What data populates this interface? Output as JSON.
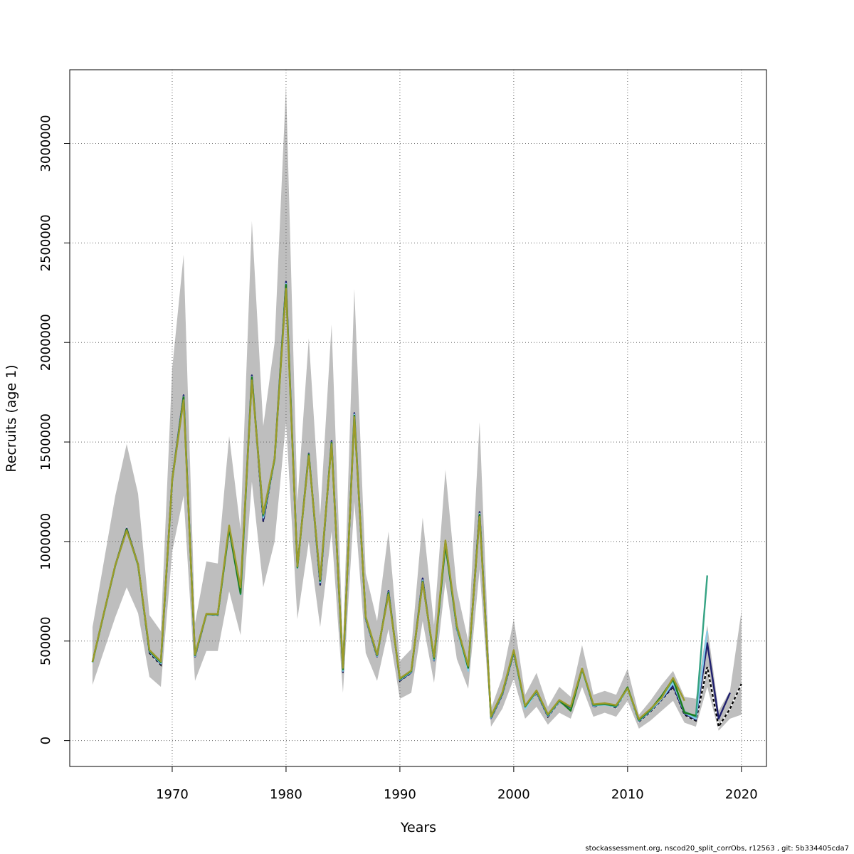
{
  "chart_data": {
    "type": "line",
    "xlabel": "Years",
    "ylabel": "Recruits (age 1)",
    "xlim": [
      1961,
      2022.2
    ],
    "ylim": [
      -130000,
      3370000
    ],
    "x_ticks": [
      1970,
      1980,
      1990,
      2000,
      2010,
      2020
    ],
    "y_ticks": [
      0,
      500000,
      1000000,
      1500000,
      2000000,
      2500000,
      3000000
    ],
    "y_tick_labels": [
      "0",
      "500000",
      "1000000",
      "1500000",
      "2000000",
      "2500000",
      "3000000"
    ],
    "grid": true,
    "band_color": "#bebebe",
    "band": {
      "x": [
        1963,
        1964,
        1965,
        1966,
        1967,
        1968,
        1969,
        1970,
        1971,
        1972,
        1973,
        1974,
        1975,
        1976,
        1977,
        1978,
        1979,
        1980,
        1981,
        1982,
        1983,
        1984,
        1985,
        1986,
        1987,
        1988,
        1989,
        1990,
        1991,
        1992,
        1993,
        1994,
        1995,
        1996,
        1997,
        1998,
        1999,
        2000,
        2001,
        2002,
        2003,
        2004,
        2005,
        2006,
        2007,
        2008,
        2009,
        2010,
        2011,
        2012,
        2013,
        2014,
        2015,
        2016,
        2017,
        2018,
        2019,
        2020
      ],
      "lower": [
        280000,
        450000,
        620000,
        770000,
        640000,
        320000,
        270000,
        950000,
        1230000,
        300000,
        450000,
        450000,
        750000,
        530000,
        1300000,
        770000,
        1000000,
        1600000,
        610000,
        1000000,
        570000,
        1050000,
        240000,
        1200000,
        440000,
        300000,
        560000,
        210000,
        240000,
        600000,
        290000,
        800000,
        410000,
        260000,
        860000,
        70000,
        160000,
        310000,
        110000,
        170000,
        80000,
        140000,
        110000,
        270000,
        120000,
        140000,
        120000,
        200000,
        60000,
        100000,
        150000,
        200000,
        90000,
        70000,
        270000,
        50000,
        110000,
        130000
      ],
      "upper": [
        570000,
        900000,
        1230000,
        1490000,
        1240000,
        630000,
        550000,
        1870000,
        2440000,
        590000,
        900000,
        890000,
        1530000,
        1060000,
        2610000,
        1580000,
        2000000,
        3290000,
        1200000,
        2020000,
        1130000,
        2090000,
        480000,
        2270000,
        840000,
        600000,
        1050000,
        400000,
        460000,
        1120000,
        580000,
        1360000,
        760000,
        500000,
        1600000,
        160000,
        320000,
        610000,
        230000,
        340000,
        170000,
        270000,
        220000,
        480000,
        230000,
        250000,
        230000,
        360000,
        130000,
        200000,
        280000,
        350000,
        220000,
        210000,
        580000,
        150000,
        250000,
        650000
      ]
    },
    "series": [
      {
        "name": "",
        "color": "#000000",
        "dashed": true,
        "x": [
          1963,
          1964,
          1965,
          1966,
          1967,
          1968,
          1969,
          1970,
          1971,
          1972,
          1973,
          1974,
          1975,
          1976,
          1977,
          1978,
          1979,
          1980,
          1981,
          1982,
          1983,
          1984,
          1985,
          1986,
          1987,
          1988,
          1989,
          1990,
          1991,
          1992,
          1993,
          1994,
          1995,
          1996,
          1997,
          1998,
          1999,
          2000,
          2001,
          2002,
          2003,
          2004,
          2005,
          2006,
          2007,
          2008,
          2009,
          2010,
          2011,
          2012,
          2013,
          2014,
          2015,
          2016,
          2017,
          2018,
          2019,
          2020
        ],
        "values": [
          395000,
          640000,
          880000,
          1065000,
          880000,
          440000,
          380000,
          1310000,
          1730000,
          420000,
          635000,
          630000,
          1070000,
          750000,
          1830000,
          1100000,
          1415000,
          2300000,
          870000,
          1440000,
          780000,
          1500000,
          340000,
          1640000,
          610000,
          420000,
          750000,
          300000,
          340000,
          810000,
          400000,
          1000000,
          560000,
          360000,
          1150000,
          110000,
          230000,
          440000,
          165000,
          240000,
          120000,
          195000,
          160000,
          360000,
          170000,
          185000,
          165000,
          260000,
          95000,
          145000,
          205000,
          270000,
          130000,
          100000,
          370000,
          70000,
          160000,
          285000
        ]
      },
      {
        "name": "",
        "color": "#1f1f6e",
        "dashed": false,
        "x": [
          1963,
          1964,
          1965,
          1966,
          1967,
          1968,
          1969,
          1970,
          1971,
          1972,
          1973,
          1974,
          1975,
          1976,
          1977,
          1978,
          1979,
          1980,
          1981,
          1982,
          1983,
          1984,
          1985,
          1986,
          1987,
          1988,
          1989,
          1990,
          1991,
          1992,
          1993,
          1994,
          1995,
          1996,
          1997,
          1998,
          1999,
          2000,
          2001,
          2002,
          2003,
          2004,
          2005,
          2006,
          2007,
          2008,
          2009,
          2010,
          2011,
          2012,
          2013,
          2014,
          2015,
          2016,
          2017,
          2018,
          2019
        ],
        "values": [
          395000,
          640000,
          880000,
          1065000,
          885000,
          445000,
          385000,
          1315000,
          1735000,
          422000,
          635000,
          632000,
          1072000,
          752000,
          1835000,
          1105000,
          1418000,
          2305000,
          872000,
          1442000,
          785000,
          1505000,
          345000,
          1645000,
          612000,
          422000,
          752000,
          302000,
          342000,
          815000,
          402000,
          1002000,
          562000,
          362000,
          1148000,
          112000,
          232000,
          442000,
          168000,
          242000,
          122000,
          198000,
          162000,
          362000,
          172000,
          188000,
          168000,
          262000,
          98000,
          148000,
          208000,
          275000,
          135000,
          105000,
          490000,
          110000,
          240000
        ]
      },
      {
        "name": "",
        "color": "#87ceeb",
        "dashed": false,
        "x": [
          1963,
          1964,
          1965,
          1966,
          1967,
          1968,
          1969,
          1970,
          1971,
          1972,
          1973,
          1974,
          1975,
          1976,
          1977,
          1978,
          1979,
          1980,
          1981,
          1982,
          1983,
          1984,
          1985,
          1986,
          1987,
          1988,
          1989,
          1990,
          1991,
          1992,
          1993,
          1994,
          1995,
          1996,
          1997,
          1998,
          1999,
          2000,
          2001,
          2002,
          2003,
          2004,
          2005,
          2006,
          2007,
          2008,
          2009,
          2010,
          2011,
          2012,
          2013,
          2014,
          2015,
          2016,
          2017
        ],
        "values": [
          393000,
          638000,
          878000,
          1060000,
          882000,
          448000,
          388000,
          1312000,
          1728000,
          425000,
          636000,
          631000,
          1068000,
          748000,
          1828000,
          1120000,
          1414000,
          2295000,
          870000,
          1438000,
          795000,
          1498000,
          350000,
          1638000,
          615000,
          425000,
          745000,
          305000,
          345000,
          805000,
          405000,
          990000,
          565000,
          350000,
          1140000,
          115000,
          235000,
          445000,
          160000,
          245000,
          125000,
          197000,
          155000,
          355000,
          175000,
          180000,
          170000,
          258000,
          100000,
          150000,
          210000,
          290000,
          140000,
          110000,
          550000
        ]
      },
      {
        "name": "",
        "color": "#35a383",
        "dashed": false,
        "x": [
          1963,
          1964,
          1965,
          1966,
          1967,
          1968,
          1969,
          1970,
          1971,
          1972,
          1973,
          1974,
          1975,
          1976,
          1977,
          1978,
          1979,
          1980,
          1981,
          1982,
          1983,
          1984,
          1985,
          1986,
          1987,
          1988,
          1989,
          1990,
          1991,
          1992,
          1993,
          1994,
          1995,
          1996,
          1997,
          1998,
          1999,
          2000,
          2001,
          2002,
          2003,
          2004,
          2005,
          2006,
          2007,
          2008,
          2009,
          2010,
          2011,
          2012,
          2013,
          2014,
          2015,
          2016,
          2017
        ],
        "values": [
          394000,
          639000,
          879000,
          1058000,
          881000,
          450000,
          392000,
          1308000,
          1720000,
          428000,
          634000,
          633000,
          1060000,
          735000,
          1820000,
          1130000,
          1412000,
          2280000,
          868000,
          1435000,
          800000,
          1495000,
          355000,
          1630000,
          618000,
          428000,
          740000,
          308000,
          348000,
          800000,
          410000,
          980000,
          570000,
          370000,
          1130000,
          118000,
          238000,
          448000,
          170000,
          248000,
          128000,
          200000,
          152000,
          358000,
          178000,
          182000,
          172000,
          265000,
          102000,
          152000,
          220000,
          305000,
          145000,
          120000,
          830000
        ]
      },
      {
        "name": "",
        "color": "#1e7b1e",
        "dashed": false,
        "x": [
          1963,
          1964,
          1965,
          1966,
          1967,
          1968,
          1969,
          1970,
          1971,
          1972,
          1973,
          1974,
          1975,
          1976,
          1977,
          1978,
          1979,
          1980,
          1981,
          1982,
          1983,
          1984,
          1985,
          1986,
          1987,
          1988,
          1989,
          1990,
          1991,
          1992,
          1993,
          1994,
          1995,
          1996,
          1997,
          1998,
          1999,
          2000,
          2001,
          2002,
          2003,
          2004,
          2005,
          2006,
          2007,
          2008,
          2009,
          2010,
          2011,
          2012,
          2013,
          2014,
          2015,
          2016
        ],
        "values": [
          395000,
          640000,
          880000,
          1062000,
          884000,
          452000,
          395000,
          1310000,
          1725000,
          430000,
          636000,
          634000,
          1065000,
          740000,
          1825000,
          1135000,
          1416000,
          2290000,
          872000,
          1437000,
          805000,
          1497000,
          360000,
          1632000,
          620000,
          430000,
          742000,
          310000,
          350000,
          798000,
          415000,
          985000,
          575000,
          365000,
          1135000,
          120000,
          240000,
          450000,
          172000,
          250000,
          130000,
          202000,
          150000,
          360000,
          180000,
          185000,
          175000,
          268000,
          105000,
          155000,
          225000,
          310000,
          140000,
          125000
        ]
      },
      {
        "name": "",
        "color": "#9b9b2a",
        "dashed": false,
        "x": [
          1963,
          1964,
          1965,
          1966,
          1967,
          1968,
          1969,
          1970,
          1971,
          1972,
          1973,
          1974,
          1975,
          1976,
          1977,
          1978,
          1979,
          1980,
          1981,
          1982,
          1983,
          1984,
          1985,
          1986,
          1987,
          1988,
          1989,
          1990,
          1991,
          1992,
          1993,
          1994,
          1995,
          1996,
          1997,
          1998,
          1999,
          2000,
          2001,
          2002,
          2003,
          2004,
          2005,
          2006,
          2007,
          2008,
          2009,
          2010,
          2011,
          2012,
          2013,
          2014,
          2015
        ],
        "values": [
          396000,
          641000,
          881000,
          1055000,
          886000,
          455000,
          398000,
          1312000,
          1710000,
          432000,
          637000,
          636000,
          1080000,
          770000,
          1810000,
          1140000,
          1418000,
          2270000,
          875000,
          1430000,
          810000,
          1490000,
          365000,
          1625000,
          622000,
          432000,
          735000,
          312000,
          352000,
          795000,
          420000,
          1005000,
          578000,
          375000,
          1125000,
          122000,
          242000,
          455000,
          175000,
          252000,
          132000,
          204000,
          170000,
          362000,
          182000,
          188000,
          178000,
          262000,
          108000,
          158000,
          215000,
          315000,
          200000
        ]
      }
    ],
    "footer": "stockassessment.org, nscod20_split_corrObs, r12563 , git: 5b334405cda7"
  }
}
